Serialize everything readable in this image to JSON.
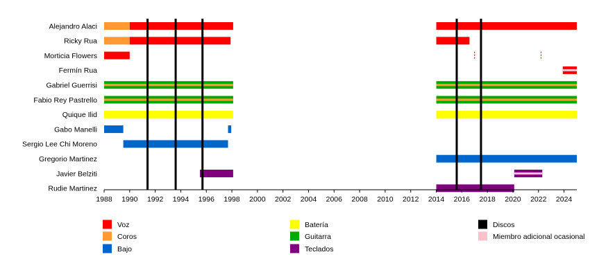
{
  "chart_data": {
    "type": "timeline",
    "title": "",
    "xlabel": "",
    "ylabel": "",
    "xlim": [
      1988,
      2025
    ],
    "x_ticks": [
      "1988",
      "1990",
      "1992",
      "1994",
      "1996",
      "1998",
      "2000",
      "2002",
      "2004",
      "2006",
      "2008",
      "2010",
      "2012",
      "2014",
      "2016",
      "2018",
      "2020",
      "2022",
      "2024"
    ],
    "grid": false,
    "roles": {
      "voz": {
        "label": "Voz",
        "color": "#ff0000"
      },
      "coros": {
        "label": "Coros",
        "color": "#ff9933"
      },
      "bajo": {
        "label": "Bajo",
        "color": "#0066cc"
      },
      "bateria": {
        "label": "Batería",
        "color": "#ffff00"
      },
      "guitarra": {
        "label": "Guitarra",
        "color": "#00aa00"
      },
      "teclados": {
        "label": "Teclados",
        "color": "#800080"
      },
      "discos": {
        "label": "Discos",
        "color": "#000000"
      },
      "adicional": {
        "label": "Miembro adicional ocasional",
        "color": "#ffc0cb"
      }
    },
    "legend_order": [
      [
        "voz",
        "coros",
        "bajo"
      ],
      [
        "bateria",
        "guitarra",
        "teclados"
      ],
      [
        "discos",
        "adicional"
      ]
    ],
    "releases": [
      1991.4,
      1993.6,
      1995.7,
      2015.6,
      2017.5
    ],
    "members": [
      {
        "name": "Alejandro Alaci",
        "bars": [
          {
            "role": "coros",
            "start": 1988.0,
            "end": 1990.0
          },
          {
            "role": "voz",
            "start": 1990.0,
            "end": 1998.1
          },
          {
            "role": "voz",
            "start": 2014.0,
            "end": 2025.0
          }
        ]
      },
      {
        "name": "Ricky Rua",
        "bars": [
          {
            "role": "coros",
            "start": 1988.0,
            "end": 1990.0
          },
          {
            "role": "voz",
            "start": 1990.0,
            "end": 1997.9
          },
          {
            "role": "voz",
            "start": 2014.0,
            "end": 2016.6
          }
        ]
      },
      {
        "name": "Morticia Flowers",
        "bars": [
          {
            "role": "voz",
            "start": 1988.0,
            "end": 1990.0
          },
          {
            "role": "voz",
            "start": 2016.95,
            "end": 2017.05,
            "style": "dashed"
          },
          {
            "role": "voz",
            "start": 2022.15,
            "end": 2022.25,
            "style": "dashed"
          }
        ]
      },
      {
        "name": "Fermín Rua",
        "bars": [
          {
            "role": "voz",
            "start": 2023.9,
            "end": 2025.0,
            "style": "occasional"
          }
        ]
      },
      {
        "name": "Gabriel Guerrisi",
        "bars": [
          {
            "role": "guitarra",
            "start": 1988.0,
            "end": 1998.1,
            "secondary": "coros"
          },
          {
            "role": "guitarra",
            "start": 2014.0,
            "end": 2025.0,
            "secondary": "coros"
          }
        ]
      },
      {
        "name": "Fabio Rey Pastrello",
        "bars": [
          {
            "role": "guitarra",
            "start": 1988.0,
            "end": 1998.1,
            "secondary": "coros"
          },
          {
            "role": "guitarra",
            "start": 2014.0,
            "end": 2025.0,
            "secondary": "coros"
          }
        ]
      },
      {
        "name": "Quique Ilid",
        "bars": [
          {
            "role": "bateria",
            "start": 1988.0,
            "end": 1998.1
          },
          {
            "role": "bateria",
            "start": 2014.0,
            "end": 2025.0
          }
        ]
      },
      {
        "name": "Gabo Manelli",
        "bars": [
          {
            "role": "bajo",
            "start": 1988.0,
            "end": 1989.5
          },
          {
            "role": "bajo",
            "start": 1997.7,
            "end": 1997.95
          }
        ]
      },
      {
        "name": "Sergio Lee Chi Moreno",
        "bars": [
          {
            "role": "bajo",
            "start": 1989.5,
            "end": 1997.7
          }
        ]
      },
      {
        "name": "Gregorio Martinez",
        "bars": [
          {
            "role": "bajo",
            "start": 2014.0,
            "end": 2025.0
          }
        ]
      },
      {
        "name": "Javier Belziti",
        "bars": [
          {
            "role": "teclados",
            "start": 1995.5,
            "end": 1998.1
          },
          {
            "role": "teclados",
            "start": 2020.1,
            "end": 2022.3,
            "style": "occasional"
          }
        ]
      },
      {
        "name": "Rudie Martinez",
        "bars": [
          {
            "role": "teclados",
            "start": 2014.0,
            "end": 2020.1
          }
        ]
      }
    ]
  }
}
